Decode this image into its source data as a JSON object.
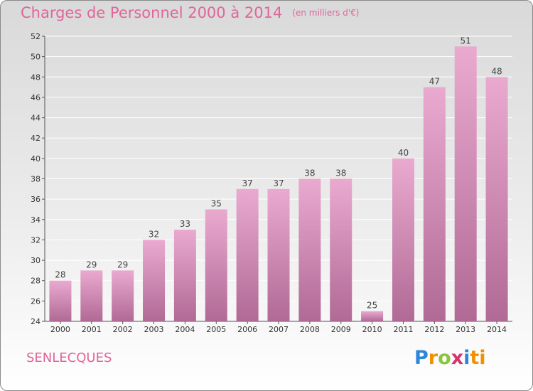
{
  "title": "Charges de Personnel 2000 à 2014",
  "subtitle": "(en milliers d'€)",
  "commune": "SENLECQUES",
  "logo": "Proxiti",
  "colors": {
    "bar_light": "#eaaad0",
    "bar_dark": "#b06a95",
    "title": "#e0659a",
    "grid": "#ffffff"
  },
  "chart_data": {
    "type": "bar",
    "title": "Charges de Personnel 2000 à 2014",
    "subtitle": "(en milliers d'€)",
    "categories": [
      "2000",
      "2001",
      "2002",
      "2003",
      "2004",
      "2005",
      "2006",
      "2007",
      "2008",
      "2009",
      "2010",
      "2011",
      "2012",
      "2013",
      "2014"
    ],
    "values": [
      28,
      29,
      29,
      32,
      33,
      35,
      37,
      37,
      38,
      38,
      25,
      40,
      47,
      51,
      48
    ],
    "ylim": [
      24,
      52
    ],
    "yticks": [
      24,
      26,
      28,
      30,
      32,
      34,
      36,
      38,
      40,
      42,
      44,
      46,
      48,
      50,
      52
    ],
    "grid": true,
    "legend": "none"
  }
}
